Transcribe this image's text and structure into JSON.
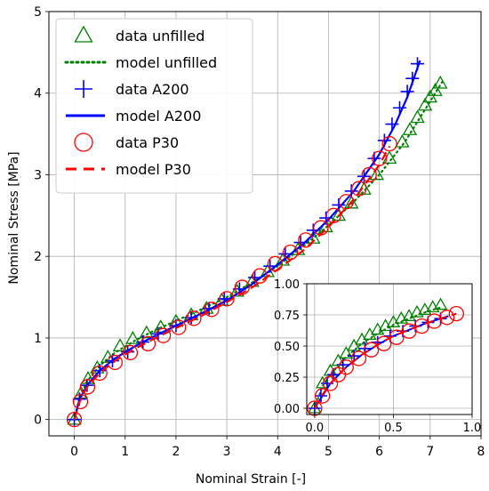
{
  "chart_data": {
    "type": "scatter",
    "xlabel": "Nominal Strain [-]",
    "ylabel": "Nominal Stress [MPa]",
    "xlim": [
      -0.5,
      8
    ],
    "ylim": [
      -0.2,
      5
    ],
    "xticks": [
      "0",
      "1",
      "2",
      "3",
      "4",
      "5",
      "6",
      "7",
      "8"
    ],
    "yticks": [
      "0",
      "1",
      "2",
      "3",
      "4",
      "5"
    ],
    "grid": true,
    "legend_position": "top-left",
    "series": [
      {
        "name": "data unfilled",
        "kind": "marker",
        "marker": "triangle",
        "color": "#008000",
        "x": [
          0,
          0.13,
          0.27,
          0.45,
          0.66,
          0.9,
          1.15,
          1.42,
          1.7,
          2.0,
          2.3,
          2.6,
          2.9,
          3.2,
          3.5,
          3.8,
          4.1,
          4.4,
          4.7,
          4.95,
          5.2,
          5.45,
          5.7,
          5.95,
          6.2,
          6.45,
          6.6,
          6.75,
          6.9,
          7.0,
          7.1,
          7.2
        ],
        "y": [
          0,
          0.32,
          0.5,
          0.63,
          0.76,
          0.9,
          0.99,
          1.06,
          1.13,
          1.2,
          1.28,
          1.36,
          1.46,
          1.57,
          1.69,
          1.81,
          1.95,
          2.08,
          2.22,
          2.36,
          2.5,
          2.65,
          2.82,
          3.0,
          3.2,
          3.4,
          3.55,
          3.7,
          3.85,
          3.95,
          4.03,
          4.12
        ]
      },
      {
        "name": "model unfilled",
        "kind": "line",
        "dash": "dotted",
        "color": "#008000",
        "x": [
          0,
          0.1,
          0.25,
          0.5,
          0.8,
          1.2,
          1.6,
          2.0,
          2.5,
          3.0,
          3.5,
          4.0,
          4.5,
          5.0,
          5.5,
          6.0,
          6.5,
          7.0,
          7.25
        ],
        "y": [
          0,
          0.27,
          0.47,
          0.66,
          0.82,
          0.97,
          1.1,
          1.21,
          1.35,
          1.5,
          1.68,
          1.88,
          2.12,
          2.38,
          2.67,
          3.0,
          3.4,
          3.9,
          4.15
        ]
      },
      {
        "name": "data A200",
        "kind": "marker",
        "marker": "plus",
        "color": "#0000ff",
        "x": [
          0,
          0.1,
          0.25,
          0.5,
          0.75,
          1.05,
          1.35,
          1.65,
          2.0,
          2.3,
          2.65,
          2.95,
          3.25,
          3.55,
          3.85,
          4.15,
          4.45,
          4.7,
          4.95,
          5.2,
          5.45,
          5.7,
          5.9,
          6.1,
          6.25,
          6.4,
          6.55,
          6.65,
          6.75
        ],
        "y": [
          0,
          0.25,
          0.42,
          0.6,
          0.72,
          0.83,
          0.95,
          1.05,
          1.15,
          1.25,
          1.36,
          1.48,
          1.6,
          1.74,
          1.88,
          2.03,
          2.17,
          2.32,
          2.47,
          2.63,
          2.8,
          2.98,
          3.2,
          3.42,
          3.62,
          3.82,
          4.02,
          4.18,
          4.36
        ]
      },
      {
        "name": "model A200",
        "kind": "line",
        "dash": "solid",
        "color": "#0000ff",
        "x": [
          0,
          0.1,
          0.25,
          0.5,
          0.8,
          1.2,
          1.6,
          2.0,
          2.5,
          3.0,
          3.5,
          4.0,
          4.5,
          5.0,
          5.5,
          6.0,
          6.3,
          6.55,
          6.8
        ],
        "y": [
          0,
          0.24,
          0.42,
          0.6,
          0.75,
          0.9,
          1.03,
          1.15,
          1.3,
          1.46,
          1.66,
          1.9,
          2.15,
          2.45,
          2.8,
          3.25,
          3.6,
          3.95,
          4.4
        ]
      },
      {
        "name": "data P30",
        "kind": "marker",
        "marker": "circle",
        "color": "#ff0000",
        "x": [
          0,
          0.12,
          0.26,
          0.5,
          0.8,
          1.1,
          1.45,
          1.75,
          2.05,
          2.35,
          2.7,
          3.0,
          3.3,
          3.65,
          3.95,
          4.25,
          4.55,
          4.85,
          5.1,
          5.35,
          5.6,
          5.8,
          6.0,
          6.2
        ],
        "y": [
          0,
          0.22,
          0.4,
          0.57,
          0.7,
          0.82,
          0.93,
          1.03,
          1.13,
          1.24,
          1.35,
          1.48,
          1.62,
          1.76,
          1.91,
          2.05,
          2.2,
          2.35,
          2.5,
          2.67,
          2.83,
          3.0,
          3.2,
          3.38
        ]
      },
      {
        "name": "model P30",
        "kind": "line",
        "dash": "dashed",
        "color": "#ff0000",
        "x": [
          0,
          0.1,
          0.25,
          0.5,
          0.8,
          1.2,
          1.6,
          2.0,
          2.5,
          3.0,
          3.5,
          4.0,
          4.5,
          5.0,
          5.5,
          6.0,
          6.2
        ],
        "y": [
          0,
          0.21,
          0.4,
          0.57,
          0.72,
          0.87,
          1.0,
          1.12,
          1.27,
          1.44,
          1.62,
          1.84,
          2.07,
          2.36,
          2.7,
          3.12,
          3.35
        ]
      }
    ],
    "inset": {
      "xlim": [
        -0.05,
        1.0
      ],
      "ylim": [
        -0.05,
        1.0
      ],
      "xticks": [
        "0.0",
        "0.5",
        "1.0"
      ],
      "yticks": [
        "0.00",
        "0.25",
        "0.50",
        "0.75",
        "1.00"
      ],
      "grid": true,
      "series": [
        {
          "name": "data unfilled",
          "kind": "marker",
          "marker": "triangle",
          "color": "#008000",
          "x": [
            0,
            0.05,
            0.1,
            0.15,
            0.2,
            0.25,
            0.3,
            0.35,
            0.4,
            0.45,
            0.5,
            0.55,
            0.6,
            0.65,
            0.7,
            0.75,
            0.8
          ],
          "y": [
            0,
            0.2,
            0.3,
            0.38,
            0.44,
            0.5,
            0.55,
            0.59,
            0.63,
            0.66,
            0.69,
            0.72,
            0.74,
            0.77,
            0.79,
            0.81,
            0.83
          ]
        },
        {
          "name": "model unfilled",
          "kind": "line",
          "dash": "dotted",
          "color": "#008000",
          "x": [
            0,
            0.05,
            0.1,
            0.2,
            0.3,
            0.4,
            0.5,
            0.6,
            0.7,
            0.8
          ],
          "y": [
            0,
            0.18,
            0.27,
            0.41,
            0.52,
            0.6,
            0.67,
            0.72,
            0.77,
            0.81
          ]
        },
        {
          "name": "data A200",
          "kind": "marker",
          "marker": "plus",
          "color": "#0000ff",
          "x": [
            0,
            0.04,
            0.08,
            0.12,
            0.18,
            0.25,
            0.32,
            0.4,
            0.48,
            0.56,
            0.64,
            0.72,
            0.8
          ],
          "y": [
            0,
            0.1,
            0.2,
            0.27,
            0.35,
            0.42,
            0.48,
            0.53,
            0.58,
            0.62,
            0.66,
            0.69,
            0.72
          ]
        },
        {
          "name": "model A200",
          "kind": "line",
          "dash": "solid",
          "color": "#0000ff",
          "x": [
            0,
            0.04,
            0.1,
            0.2,
            0.3,
            0.4,
            0.5,
            0.6,
            0.7,
            0.8,
            0.85
          ],
          "y": [
            0,
            0.08,
            0.2,
            0.33,
            0.43,
            0.51,
            0.58,
            0.63,
            0.68,
            0.72,
            0.74
          ]
        },
        {
          "name": "data P30",
          "kind": "marker",
          "marker": "circle",
          "color": "#ff0000",
          "x": [
            0,
            0.05,
            0.1,
            0.15,
            0.2,
            0.28,
            0.36,
            0.44,
            0.52,
            0.6,
            0.68,
            0.76,
            0.84,
            0.9
          ],
          "y": [
            0,
            0.1,
            0.2,
            0.27,
            0.33,
            0.4,
            0.47,
            0.52,
            0.57,
            0.62,
            0.66,
            0.7,
            0.73,
            0.76
          ]
        },
        {
          "name": "model P30",
          "kind": "line",
          "dash": "dashed",
          "color": "#ff0000",
          "x": [
            0,
            0.05,
            0.1,
            0.2,
            0.3,
            0.4,
            0.5,
            0.6,
            0.7,
            0.8,
            0.9
          ],
          "y": [
            0,
            0.11,
            0.2,
            0.33,
            0.43,
            0.51,
            0.58,
            0.63,
            0.68,
            0.72,
            0.76
          ]
        }
      ]
    }
  }
}
